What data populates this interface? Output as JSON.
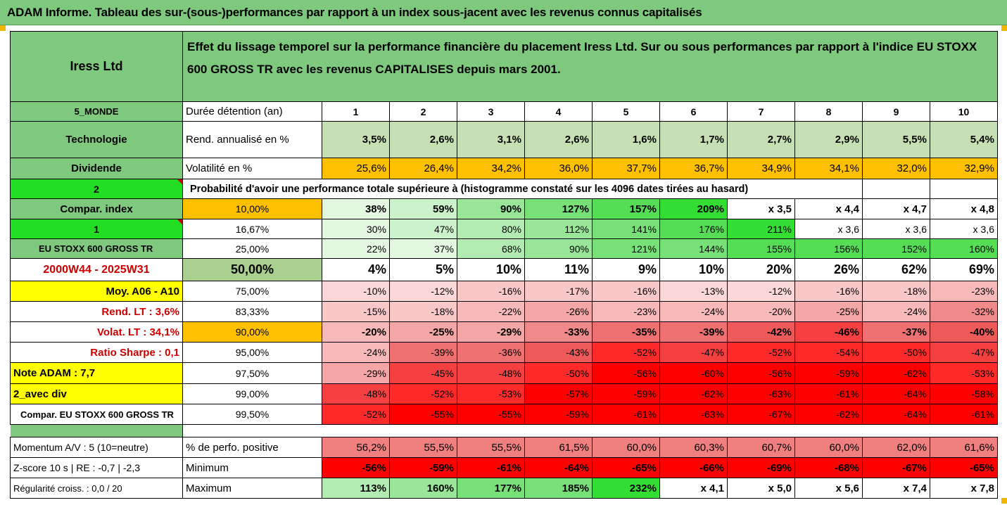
{
  "title": "ADAM Informe. Tableau des sur-(sous-)performances par rapport à un index sous-jacent avec les revenus connus capitalisés",
  "company": "Iress Ltd",
  "description": "Effet du lissage temporel sur la performance financière du placement Iress Ltd. Sur ou sous performances par rapport à l'indice EU STOXX 600 GROSS TR avec les revenus CAPITALISES depuis mars 2001.",
  "left_labels": {
    "region": "5_MONDE",
    "sector": "Technologie",
    "dividend": "Dividende",
    "two": "2",
    "compar_index": "Compar. index",
    "one": "1",
    "index_name": "EU STOXX 600 GROSS TR",
    "period": "2000W44 - 2025W31",
    "moy": "Moy. A06 - A10",
    "rend_lt": "Rend. LT :   3,6%",
    "volat_lt": "Volat. LT :   34,1%",
    "sharpe": "Ratio Sharpe :   0,1",
    "note": "Note ADAM : 7,7",
    "avec_div": "2_avec div",
    "compar_eu": "Compar. EU STOXX 600 GROSS TR",
    "momentum": "Momentum A/V : 5 (10=neutre)",
    "zscore": "Z-score 10 s  | RE : -0,7  | -2,3",
    "regularite": "Régularité croiss. : 0,0 / 20"
  },
  "row_labels": {
    "duree": "Durée détention (an)",
    "rend": "Rend. annualisé en %",
    "volat": "Volatilité en %",
    "prob": "Probabilité d'avoir une performance totale supérieure à (histogramme constaté sur les 4096 dates tirées au hasard)",
    "pct_pos": "% de perfo. positive",
    "minimum": "Minimum",
    "maximum": "Maximum"
  },
  "years": [
    "1",
    "2",
    "3",
    "4",
    "5",
    "6",
    "7",
    "8",
    "9",
    "10"
  ],
  "rend": [
    "3,5%",
    "2,6%",
    "3,1%",
    "2,6%",
    "1,6%",
    "1,7%",
    "2,7%",
    "2,9%",
    "5,5%",
    "5,4%"
  ],
  "volat": [
    "25,6%",
    "26,4%",
    "34,2%",
    "36,0%",
    "37,7%",
    "36,7%",
    "34,9%",
    "34,1%",
    "32,0%",
    "32,9%"
  ],
  "quantile_rows": [
    {
      "q": "10,00%",
      "values": [
        "38%",
        "59%",
        "90%",
        "127%",
        "157%",
        "209%",
        "x 3,5",
        "x 4,4",
        "x 4,7",
        "x 4,8"
      ]
    },
    {
      "q": "16,67%",
      "values": [
        "30%",
        "47%",
        "80%",
        "112%",
        "141%",
        "176%",
        "211%",
        "x 3,6",
        "x 3,6",
        "x 3,6"
      ]
    },
    {
      "q": "25,00%",
      "values": [
        "22%",
        "37%",
        "68%",
        "90%",
        "121%",
        "144%",
        "155%",
        "156%",
        "152%",
        "160%"
      ]
    },
    {
      "q": "50,00%",
      "values": [
        "4%",
        "5%",
        "10%",
        "11%",
        "9%",
        "10%",
        "20%",
        "26%",
        "62%",
        "69%"
      ]
    },
    {
      "q": "75,00%",
      "values": [
        "-10%",
        "-12%",
        "-16%",
        "-17%",
        "-16%",
        "-13%",
        "-12%",
        "-16%",
        "-18%",
        "-23%"
      ]
    },
    {
      "q": "83,33%",
      "values": [
        "-15%",
        "-18%",
        "-22%",
        "-26%",
        "-23%",
        "-24%",
        "-20%",
        "-25%",
        "-24%",
        "-32%"
      ]
    },
    {
      "q": "90,00%",
      "values": [
        "-20%",
        "-25%",
        "-29%",
        "-33%",
        "-35%",
        "-39%",
        "-42%",
        "-46%",
        "-37%",
        "-40%"
      ]
    },
    {
      "q": "95,00%",
      "values": [
        "-24%",
        "-39%",
        "-36%",
        "-43%",
        "-52%",
        "-47%",
        "-52%",
        "-54%",
        "-50%",
        "-47%"
      ]
    },
    {
      "q": "97,50%",
      "values": [
        "-29%",
        "-45%",
        "-48%",
        "-50%",
        "-56%",
        "-60%",
        "-56%",
        "-59%",
        "-62%",
        "-53%"
      ]
    },
    {
      "q": "99,00%",
      "values": [
        "-48%",
        "-52%",
        "-53%",
        "-57%",
        "-59%",
        "-62%",
        "-63%",
        "-61%",
        "-64%",
        "-58%"
      ]
    },
    {
      "q": "99,50%",
      "values": [
        "-52%",
        "-55%",
        "-55%",
        "-59%",
        "-61%",
        "-63%",
        "-67%",
        "-62%",
        "-64%",
        "-61%"
      ]
    }
  ],
  "pct_pos": [
    "56,2%",
    "55,5%",
    "55,5%",
    "61,5%",
    "60,0%",
    "60,3%",
    "60,7%",
    "60,0%",
    "62,0%",
    "61,6%"
  ],
  "minimum": [
    "-56%",
    "-59%",
    "-61%",
    "-64%",
    "-65%",
    "-66%",
    "-69%",
    "-68%",
    "-67%",
    "-65%"
  ],
  "maximum": [
    "113%",
    "160%",
    "177%",
    "185%",
    "232%",
    "x 4,1",
    "x 5,0",
    "x 5,6",
    "x 7,4",
    "x 7,8"
  ]
}
